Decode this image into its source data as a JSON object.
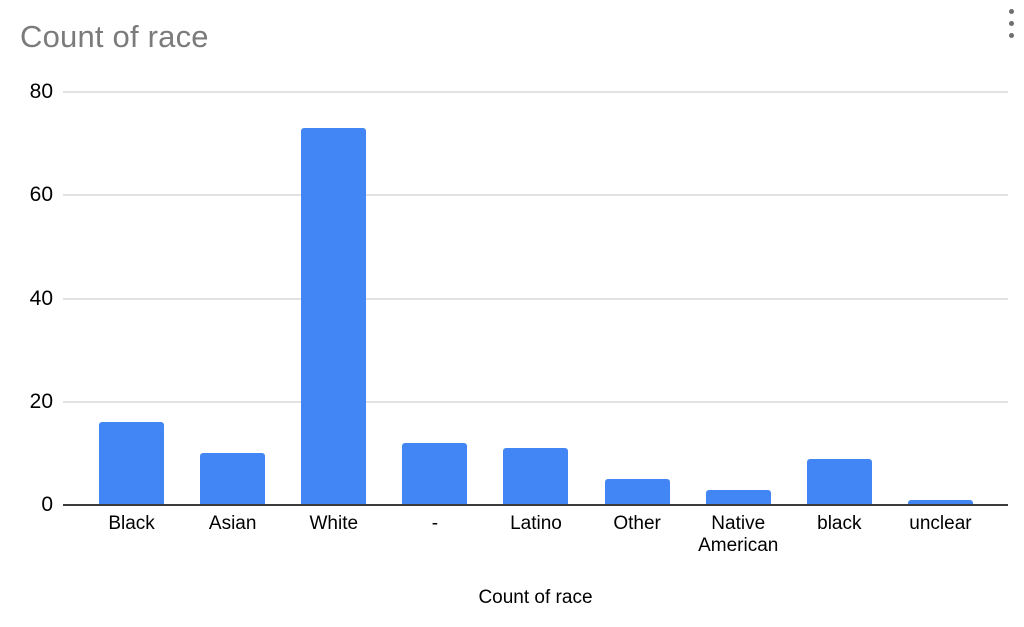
{
  "chart_data": {
    "type": "bar",
    "title": "Count of race",
    "categories": [
      "Black",
      "Asian",
      "White",
      "-",
      "Latino",
      "Other",
      "Native American",
      "black",
      "unclear"
    ],
    "values": [
      16,
      10,
      73,
      12,
      11,
      5,
      3,
      9,
      1
    ],
    "xlabel": "Count of race",
    "ylabel": "",
    "ylim": [
      0,
      80
    ],
    "yticks": [
      0,
      20,
      40,
      60,
      80
    ],
    "grid": true,
    "legend": "none",
    "bar_color": "#4285f4"
  },
  "menu": {
    "icon": "kebab-menu"
  },
  "colors": {
    "bar": "#4285f4",
    "chart_title": "#7b7b7b",
    "gridline": "#e2e2e2",
    "axis_baseline": "#3b3b3b",
    "tick_label": "#000000",
    "menu_icon": "#6e6e6e",
    "background": "#ffffff"
  }
}
